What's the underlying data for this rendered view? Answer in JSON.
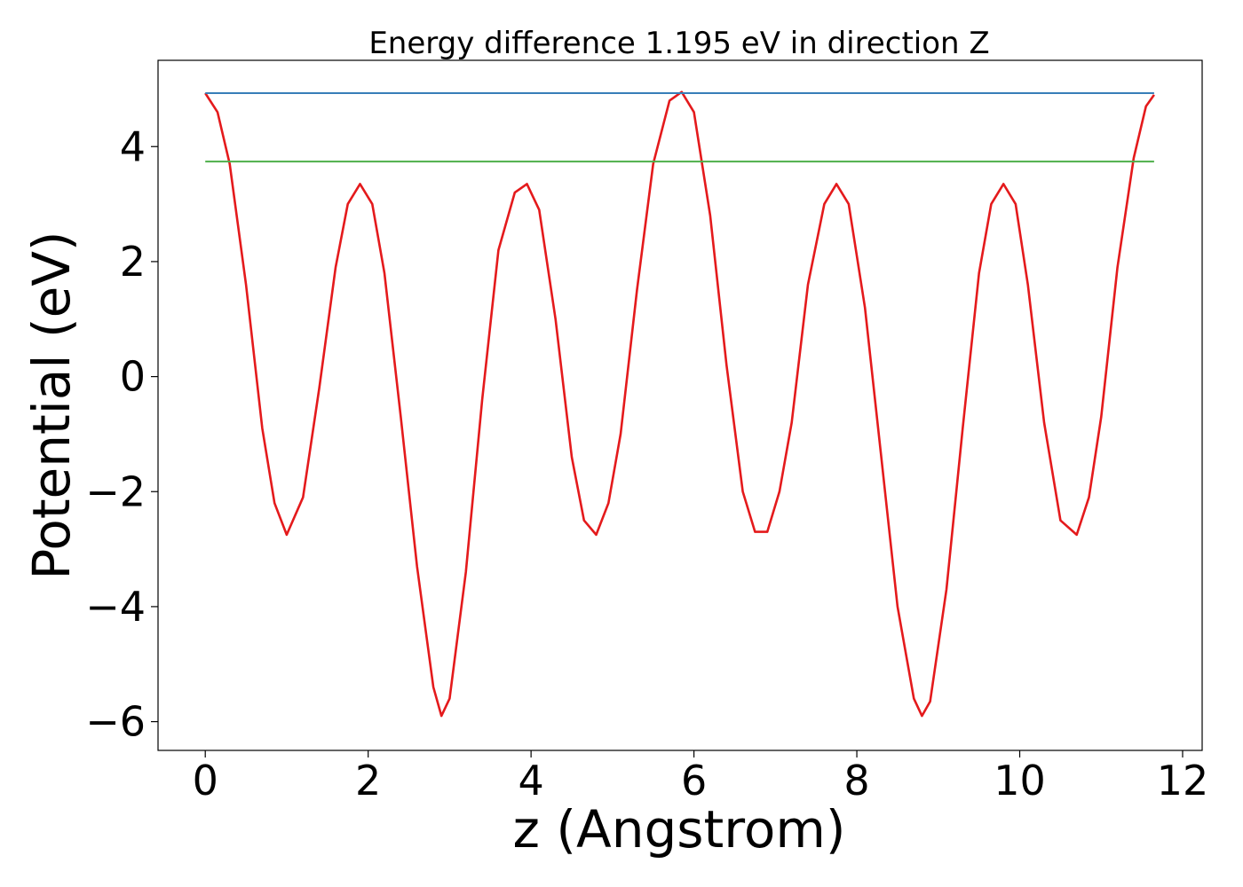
{
  "chart_data": {
    "type": "line",
    "title": "Energy difference 1.195 eV in direction Z",
    "xlabel": "z (Angstrom)",
    "ylabel": "Potential (eV)",
    "xlim": [
      -0.58,
      12.24
    ],
    "ylim": [
      -6.5,
      5.5
    ],
    "xticks": [
      0,
      2,
      4,
      6,
      8,
      10,
      12
    ],
    "yticks": [
      -6,
      -4,
      -2,
      0,
      2,
      4
    ],
    "xtick_labels": [
      "0",
      "2",
      "4",
      "6",
      "8",
      "10",
      "12"
    ],
    "ytick_labels": [
      "−6",
      "−4",
      "−2",
      "0",
      "2",
      "4"
    ],
    "grid": false,
    "series": [
      {
        "color": "#e41a1c",
        "x": [
          0.0,
          0.15,
          0.3,
          0.5,
          0.7,
          0.85,
          1.0,
          1.2,
          1.4,
          1.6,
          1.75,
          1.9,
          2.05,
          2.2,
          2.4,
          2.6,
          2.8,
          2.9,
          3.0,
          3.2,
          3.4,
          3.6,
          3.8,
          3.95,
          4.1,
          4.3,
          4.5,
          4.65,
          4.8,
          4.95,
          5.1,
          5.3,
          5.5,
          5.7,
          5.85,
          6.0,
          6.2,
          6.4,
          6.6,
          6.75,
          6.9,
          7.05,
          7.2,
          7.4,
          7.6,
          7.75,
          7.9,
          8.1,
          8.3,
          8.5,
          8.7,
          8.8,
          8.9,
          9.1,
          9.3,
          9.5,
          9.65,
          9.8,
          9.95,
          10.1,
          10.3,
          10.5,
          10.7,
          10.85,
          11.0,
          11.2,
          11.4,
          11.55,
          11.65
        ],
        "y": [
          4.93,
          4.6,
          3.7,
          1.6,
          -0.9,
          -2.2,
          -2.75,
          -2.1,
          -0.2,
          1.9,
          3.0,
          3.35,
          3.0,
          1.8,
          -0.7,
          -3.3,
          -5.4,
          -5.9,
          -5.6,
          -3.4,
          -0.4,
          2.2,
          3.2,
          3.35,
          2.9,
          1.0,
          -1.4,
          -2.5,
          -2.75,
          -2.2,
          -1.0,
          1.5,
          3.7,
          4.8,
          4.95,
          4.6,
          2.8,
          0.2,
          -2.0,
          -2.7,
          -2.7,
          -2.0,
          -0.8,
          1.6,
          3.0,
          3.35,
          3.0,
          1.2,
          -1.4,
          -4.0,
          -5.6,
          -5.9,
          -5.65,
          -3.7,
          -0.9,
          1.8,
          3.0,
          3.35,
          3.0,
          1.6,
          -0.8,
          -2.5,
          -2.75,
          -2.1,
          -0.7,
          1.9,
          3.8,
          4.7,
          4.9
        ]
      },
      {
        "color": "#377eb8",
        "x": [
          0.0,
          11.65
        ],
        "y": [
          4.93,
          4.93
        ]
      },
      {
        "color": "#4daf4a",
        "x": [
          0.0,
          11.65
        ],
        "y": [
          3.74,
          3.74
        ]
      }
    ]
  }
}
